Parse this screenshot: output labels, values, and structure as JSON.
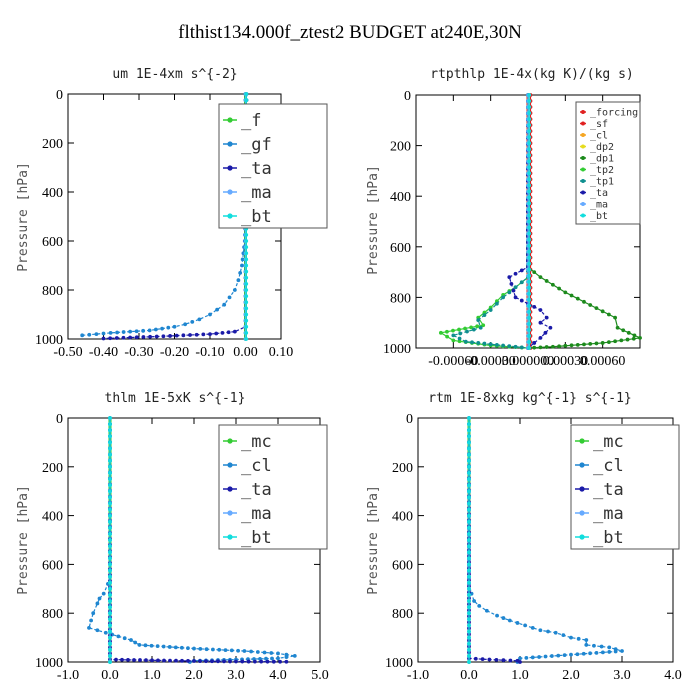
{
  "title": "flthist134.000f_ztest2  BUDGET at240E,30N",
  "colors": {
    "green": "#33cc33",
    "blue": "#1f86d0",
    "navy": "#1a1aa8",
    "cyan": "#11dddd",
    "red": "#e02020",
    "orange": "#f5a623",
    "yellow": "#e6dc1e",
    "darkgreen": "#1c8a1c",
    "lightblue": "#66aaff",
    "teal": "#0f8f8f"
  },
  "chart_data": [
    {
      "type": "line",
      "title": "um   1E-4xm s^{-2}",
      "xlabel": "",
      "ylabel": "Pressure [hPa]",
      "xlim": [
        -0.5,
        0.1
      ],
      "ylim": [
        1000,
        0
      ],
      "xticks": [
        -0.5,
        -0.4,
        -0.3,
        -0.2,
        -0.1,
        0.0,
        0.1
      ],
      "xtick_labels": [
        "-0.50",
        "-0.40",
        "-0.30",
        "-0.20",
        "-0.10",
        "0.00",
        "0.10"
      ],
      "yticks": [
        0,
        200,
        400,
        600,
        800,
        1000
      ],
      "ytick_labels": [
        "0",
        "200",
        "400",
        "600",
        "800",
        "1000"
      ],
      "grid": false,
      "legend_position": "top-right",
      "legend": [
        "_f",
        "_gf",
        "_ta",
        "_ma",
        "_bt"
      ],
      "series": [
        {
          "name": "_f",
          "color": "green",
          "x": [
            0.0,
            0.0
          ],
          "y": [
            0,
            1000
          ]
        },
        {
          "name": "_gf",
          "color": "blue",
          "x": [
            0.003,
            0.003,
            0.002,
            -0.002,
            -0.01,
            -0.02,
            -0.03,
            -0.045,
            -0.06,
            -0.08,
            -0.1,
            -0.13,
            -0.17,
            -0.2,
            -0.27,
            -0.38,
            -0.42,
            -0.46
          ],
          "y": [
            0,
            200,
            400,
            600,
            700,
            760,
            800,
            830,
            860,
            880,
            900,
            920,
            940,
            950,
            965,
            975,
            980,
            985
          ]
        },
        {
          "name": "_ta",
          "color": "navy",
          "x": [
            0.0,
            0.0,
            -0.03,
            -0.1,
            -0.25,
            -0.4
          ],
          "y": [
            0,
            950,
            970,
            980,
            990,
            998
          ]
        },
        {
          "name": "_ma",
          "color": "lightblue",
          "x": [
            0.0,
            0.0
          ],
          "y": [
            0,
            1000
          ]
        },
        {
          "name": "_bt",
          "color": "cyan",
          "x": [
            0.002,
            0.002
          ],
          "y": [
            0,
            1000
          ]
        }
      ]
    },
    {
      "type": "line",
      "title": "rtpthlp   1E-4x(kg K)/(kg s)",
      "xlabel": "",
      "ylabel": "Pressure [hPa]",
      "xlim": [
        -0.0009,
        0.0009
      ],
      "ylim": [
        1000,
        0
      ],
      "xticks": [
        -0.0006,
        -0.0003,
        0.0,
        0.0003,
        0.0006
      ],
      "xtick_labels": [
        "-0.00060",
        "-0.00030",
        "0.000000",
        "0.00030",
        "0.00060"
      ],
      "yticks": [
        0,
        200,
        400,
        600,
        800,
        1000
      ],
      "ytick_labels": [
        "0",
        "200",
        "400",
        "600",
        "800",
        "1000"
      ],
      "grid": false,
      "legend_position": "top-right",
      "legend": [
        "_forcing",
        "_sf",
        "_cl",
        "_dp2",
        "_dp1",
        "_tp2",
        "_tp1",
        "_ta",
        "_ma",
        "_bt"
      ],
      "series": [
        {
          "name": "_forcing",
          "color": "red",
          "x": [
            0.0,
            0.0
          ],
          "y": [
            0,
            1000
          ]
        },
        {
          "name": "_sf",
          "color": "red",
          "x": [
            2e-05,
            2e-05
          ],
          "y": [
            0,
            1000
          ]
        },
        {
          "name": "_cl",
          "color": "orange",
          "x": [
            0.0,
            0.0
          ],
          "y": [
            0,
            1000
          ]
        },
        {
          "name": "_dp2",
          "color": "yellow",
          "x": [
            0.0,
            0.0
          ],
          "y": [
            0,
            1000
          ]
        },
        {
          "name": "_dp1",
          "color": "darkgreen",
          "x": [
            0.0,
            0.0,
            0.0001,
            0.0003,
            0.0005,
            0.0007,
            0.00072,
            0.0009,
            0.0006,
            0.0002,
            0.0
          ],
          "y": [
            0,
            680,
            720,
            780,
            830,
            880,
            920,
            960,
            980,
            995,
            1000
          ]
        },
        {
          "name": "_tp2",
          "color": "green",
          "x": [
            0.0,
            0.0,
            -0.0001,
            -0.0002,
            -0.0003,
            -0.0004,
            -0.00036,
            -0.0007,
            -0.0006,
            -0.0003,
            0.0
          ],
          "y": [
            0,
            720,
            760,
            790,
            840,
            880,
            910,
            940,
            970,
            990,
            1000
          ]
        },
        {
          "name": "_tp1",
          "color": "teal",
          "x": [
            0.0,
            0.0,
            -0.0001,
            -0.0002,
            -0.0003,
            -0.0004,
            -0.00038,
            -0.0006,
            -0.0005,
            -0.0002,
            0.0
          ],
          "y": [
            0,
            720,
            760,
            800,
            850,
            890,
            920,
            950,
            975,
            990,
            1000
          ]
        },
        {
          "name": "_ta",
          "color": "navy",
          "x": [
            0.0,
            0.0,
            -0.00015,
            -0.0001,
            0.0001,
            0.00015,
            0.0001,
            0.00018,
            0.0001,
            0.0
          ],
          "y": [
            0,
            680,
            720,
            800,
            850,
            880,
            900,
            920,
            960,
            1000
          ]
        },
        {
          "name": "_ma",
          "color": "lightblue",
          "x": [
            0.0,
            0.0
          ],
          "y": [
            0,
            1000
          ]
        },
        {
          "name": "_bt",
          "color": "cyan",
          "x": [
            1e-05,
            1e-05
          ],
          "y": [
            0,
            1000
          ]
        }
      ]
    },
    {
      "type": "line",
      "title": "thlm   1E-5xK s^{-1}",
      "xlabel": "",
      "ylabel": "Pressure [hPa]",
      "xlim": [
        -1.0,
        5.0
      ],
      "ylim": [
        1000,
        0
      ],
      "xticks": [
        -1,
        0,
        1,
        2,
        3,
        4,
        5
      ],
      "xtick_labels": [
        "-1.0",
        "0.0",
        "1.0",
        "2.0",
        "3.0",
        "4.0",
        "5.0"
      ],
      "yticks": [
        0,
        200,
        400,
        600,
        800,
        1000
      ],
      "ytick_labels": [
        "0",
        "200",
        "400",
        "600",
        "800",
        "1000"
      ],
      "grid": false,
      "legend_position": "top-right",
      "legend": [
        "_mc",
        "_cl",
        "_ta",
        "_ma",
        "_bt"
      ],
      "series": [
        {
          "name": "_mc",
          "color": "green",
          "x": [
            0.0,
            0.0
          ],
          "y": [
            0,
            1000
          ]
        },
        {
          "name": "_cl",
          "color": "blue",
          "x": [
            0.0,
            0.0,
            -0.05,
            -0.15,
            -0.25,
            -0.3,
            -0.4,
            -0.5,
            -0.1,
            0.5,
            0.6,
            0.7,
            2.0,
            3.2,
            4.0,
            4.4,
            4.0,
            2.0,
            1.9
          ],
          "y": [
            0,
            650,
            680,
            720,
            740,
            760,
            800,
            860,
            880,
            910,
            920,
            930,
            945,
            955,
            965,
            975,
            985,
            995,
            1000
          ]
        },
        {
          "name": "_ta",
          "color": "navy",
          "x": [
            0.0,
            0.0,
            1.0,
            2.0,
            3.0,
            4.2
          ],
          "y": [
            0,
            990,
            993,
            996,
            998,
            999
          ]
        },
        {
          "name": "_ma",
          "color": "lightblue",
          "x": [
            0.0,
            0.0
          ],
          "y": [
            0,
            1000
          ]
        },
        {
          "name": "_bt",
          "color": "cyan",
          "x": [
            0.0,
            0.0
          ],
          "y": [
            0,
            1000
          ]
        }
      ]
    },
    {
      "type": "line",
      "title": "rtm   1E-8xkg kg^{-1} s^{-1}",
      "xlabel": "",
      "ylabel": "Pressure [hPa]",
      "xlim": [
        -1.0,
        4.0
      ],
      "ylim": [
        1000,
        0
      ],
      "xticks": [
        -1,
        0,
        1,
        2,
        3,
        4
      ],
      "xtick_labels": [
        "-1.0",
        "0.0",
        "1.0",
        "2.0",
        "3.0",
        "4.0"
      ],
      "yticks": [
        0,
        200,
        400,
        600,
        800,
        1000
      ],
      "ytick_labels": [
        "0",
        "200",
        "400",
        "600",
        "800",
        "1000"
      ],
      "grid": false,
      "legend_position": "top-right",
      "legend": [
        "_mc",
        "_cl",
        "_ta",
        "_ma",
        "_bt"
      ],
      "series": [
        {
          "name": "_mc",
          "color": "green",
          "x": [
            0.0,
            0.0
          ],
          "y": [
            0,
            1000
          ]
        },
        {
          "name": "_cl",
          "color": "blue",
          "x": [
            0.0,
            0.0,
            0.05,
            0.1,
            0.2,
            0.35,
            0.55,
            0.8,
            1.1,
            1.4,
            1.7,
            2.0,
            2.3,
            2.3,
            2.75,
            3.0,
            2.0,
            1.0,
            0.95
          ],
          "y": [
            0,
            680,
            720,
            750,
            770,
            790,
            810,
            830,
            850,
            870,
            880,
            900,
            910,
            930,
            940,
            955,
            970,
            985,
            1000
          ]
        },
        {
          "name": "_ta",
          "color": "navy",
          "x": [
            0.0,
            0.0,
            0.4,
            0.95,
            1.0
          ],
          "y": [
            0,
            985,
            990,
            995,
            1000
          ]
        },
        {
          "name": "_ma",
          "color": "lightblue",
          "x": [
            0.0,
            0.0
          ],
          "y": [
            0,
            1000
          ]
        },
        {
          "name": "_bt",
          "color": "cyan",
          "x": [
            0.0,
            0.0
          ],
          "y": [
            0,
            1000
          ]
        }
      ]
    }
  ]
}
